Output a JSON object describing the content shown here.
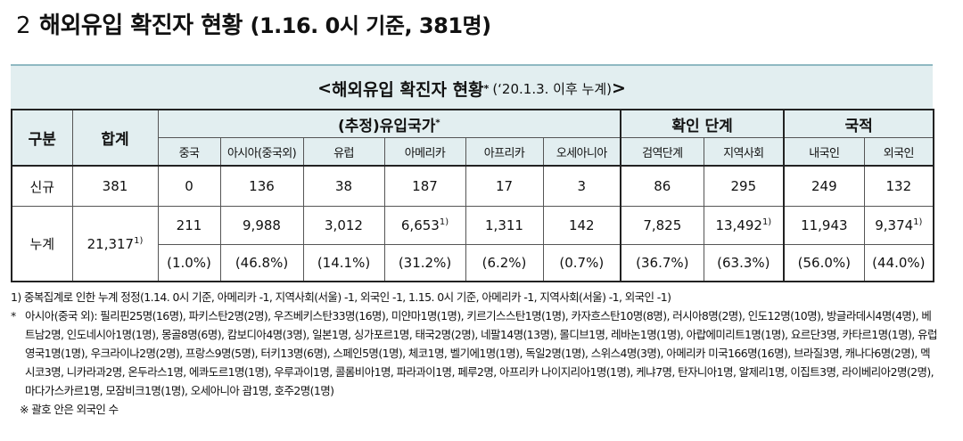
{
  "heading": {
    "number": "2",
    "title": "해외유입 확진자 현황",
    "subtitle": "(1.16. 0시 기준, 381명)"
  },
  "box_title": {
    "prefix": "< ",
    "title": "해외유입 확진자 현황",
    "star": "*",
    "period": "(‘20.1.3. 이후 누계)",
    "suffix": " >"
  },
  "table": {
    "header": {
      "category": "구분",
      "total": "합계",
      "inflow_group": "(추정)유입국가",
      "inflow_star": "*",
      "stage_group": "확인 단계",
      "nationality_group": "국적"
    },
    "subheaders": [
      "중국",
      "아시아(중국외)",
      "유럽",
      "아메리카",
      "아프리카",
      "오세아니아",
      "검역단계",
      "지역사회",
      "내국인",
      "외국인"
    ],
    "new": {
      "label": "신규",
      "total": "381",
      "values": [
        "0",
        "136",
        "38",
        "187",
        "17",
        "3",
        "86",
        "295",
        "249",
        "132"
      ]
    },
    "cumulative": {
      "label": "누계",
      "total": "21,317",
      "total_note": "1)",
      "values": [
        "211",
        "9,988",
        "3,012",
        "6,653",
        "1,311",
        "142",
        "7,825",
        "13,492",
        "11,943",
        "9,374"
      ],
      "value_notes": [
        "",
        "",
        "",
        "1)",
        "",
        "",
        "",
        "1)",
        "",
        "1)"
      ],
      "percents": [
        "(1.0%)",
        "(46.8%)",
        "(14.1%)",
        "(31.2%)",
        "(6.2%)",
        "(0.7%)",
        "(36.7%)",
        "(63.3%)",
        "(56.0%)",
        "(44.0%)"
      ]
    }
  },
  "notes": {
    "note1": "1) 중복집계로 인한 누계 정정(1.14. 0시 기준, 아메리카 -1, 지역사회(서울) -1, 외국인 -1, 1.15. 0시 기준, 아메리카 -1, 지역사회(서울) -1, 외국인 -1)",
    "note2_star": "*",
    "note2": "아시아(중국 외): 필리핀25명(16명), 파키스탄2명(2명), 우즈베키스탄33명(16명), 미얀마1명(1명), 키르기스스탄1명(1명), 카자흐스탄10명(8명), 러시아8명(2명), 인도12명(10명), 방글라데시4명(4명), 베트남2명, 인도네시아1명(1명), 몽골8명(6명), 캄보디아4명(3명), 일본1명, 싱가포르1명, 태국2명(2명), 네팔14명(13명), 몰디브1명, 레바논1명(1명), 아랍에미리트1명(1명), 요르단3명, 카타르1명(1명), 유럽 영국1명(1명), 우크라이나2명(2명), 프랑스9명(5명), 터키13명(6명), 스페인5명(1명), 체코1명, 벨기에1명(1명), 독일2명(1명), 스위스4명(3명), 아메리카 미국166명(16명), 브라질3명, 캐나다6명(2명), 멕시코3명, 니카라과2명, 온두라스1명, 에콰도르1명(1명), 우루과이1명, 콜롬비아1명, 파라과이1명, 페루2명, 아프리카 나이지리아1명(1명), 케냐7명, 탄자니아1명, 알제리1명, 이집트3명, 라이베리아2명(2명), 마다가스카르1명, 모잠비크1명(1명), 오세아니아 괌1명, 호주2명(1명)",
    "note3": "※ 괄호 안은 외국인 수"
  }
}
